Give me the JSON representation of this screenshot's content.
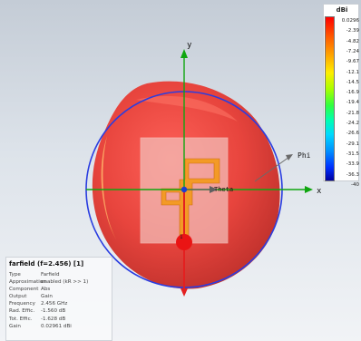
{
  "view": {
    "axes": {
      "x": "x",
      "y": "y",
      "phi": "Phi",
      "theta": "Theta"
    },
    "port_label": "1",
    "colors": {
      "pattern": "#e33b35",
      "x_axis": "#0fa60f",
      "y_axis": "#0fa60f",
      "z_axis": "#e32020",
      "circle": "#2a3de0",
      "feed": "#ff9a1a",
      "port": "#e81010"
    }
  },
  "legend": {
    "unit": "dBi",
    "values": [
      "0.0296",
      "-2.39",
      "-4.82",
      "-7.24",
      "-9.67",
      "-12.1",
      "-14.5",
      "-16.9",
      "-19.4",
      "-21.8",
      "-24.2",
      "-26.6",
      "-29.1",
      "-31.5",
      "-33.9",
      "-36.3",
      "-40"
    ]
  },
  "info": {
    "title": "farfield (f=2.456) [1]",
    "rows": [
      {
        "label": "Type",
        "value": "Farfield"
      },
      {
        "label": "Approximation",
        "value": "enabled (kR >> 1)"
      },
      {
        "label": "Component",
        "value": "Abs"
      },
      {
        "label": "Output",
        "value": "Gain"
      },
      {
        "label": "Frequency",
        "value": "2.456 GHz"
      },
      {
        "label": "Rad. Effic.",
        "value": "-1.560 dB"
      },
      {
        "label": "Tot. Effic.",
        "value": "-1.628 dB"
      },
      {
        "label": "Gain",
        "value": "0.02961 dBi"
      }
    ]
  }
}
